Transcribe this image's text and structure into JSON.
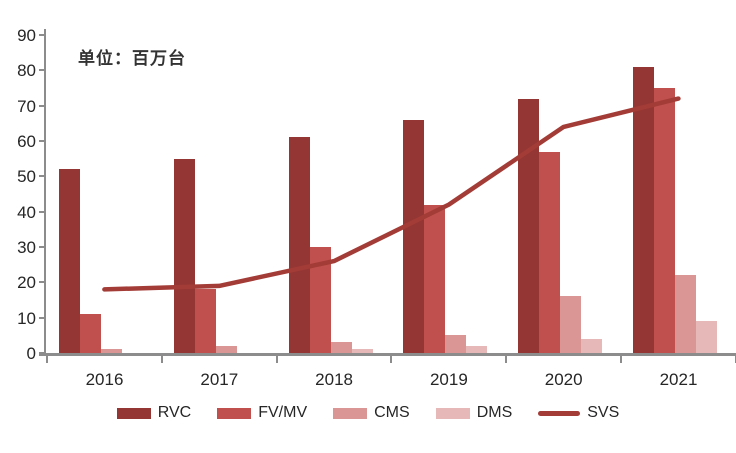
{
  "unit_label": "单位：百万台",
  "chart_data": {
    "type": "bar",
    "subtype": "grouped bars with overlay line",
    "title": "",
    "xlabel": "",
    "ylabel": "",
    "unit_note": "单位：百万台",
    "categories": [
      "2016",
      "2017",
      "2018",
      "2019",
      "2020",
      "2021"
    ],
    "series": [
      {
        "name": "RVC",
        "kind": "bar",
        "color": "#943634",
        "values": [
          52,
          55,
          61,
          66,
          72,
          81
        ]
      },
      {
        "name": "FV/MV",
        "kind": "bar",
        "color": "#C0504D",
        "values": [
          11,
          18,
          30,
          42,
          57,
          75
        ]
      },
      {
        "name": "CMS",
        "kind": "bar",
        "color": "#D99694",
        "values": [
          1,
          2,
          3,
          5,
          16,
          22
        ]
      },
      {
        "name": "DMS",
        "kind": "bar",
        "color": "#E6B9B8",
        "values": [
          0,
          0,
          1,
          2,
          4,
          9
        ]
      },
      {
        "name": "SVS",
        "kind": "line",
        "color": "#A33C36",
        "values": [
          18,
          19,
          26,
          42,
          64,
          72
        ]
      }
    ],
    "ylim": [
      0,
      90
    ],
    "yticks": [
      0,
      10,
      20,
      30,
      40,
      50,
      60,
      70,
      80,
      90
    ],
    "grid": false,
    "legend_position": "bottom",
    "axis_color": "#8C8C8C",
    "text_color": "#262626"
  }
}
